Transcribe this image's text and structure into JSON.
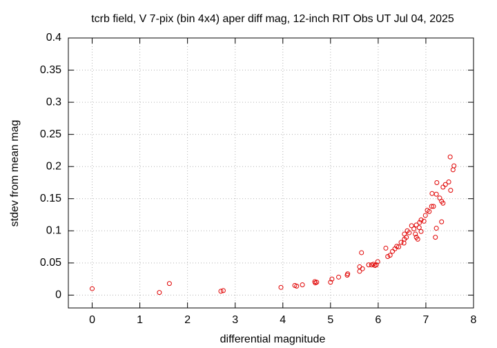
{
  "chart_data": {
    "type": "scatter",
    "title": "tcrb field, V 7-pix (bin 4x4) aper diff mag,  12-inch RIT Obs UT Jul 04, 2025",
    "x_label": "differential magnitude",
    "y_label": "stdev from mean mag",
    "color": "#e00000",
    "grid": true,
    "xlim": [
      -0.5,
      8
    ],
    "xticks": [
      0,
      1,
      2,
      3,
      4,
      5,
      6,
      7,
      8
    ],
    "ylim": [
      -0.02,
      0.4
    ],
    "yticks": [
      0,
      0.05,
      0.1,
      0.15,
      0.2,
      0.25,
      0.3,
      0.35,
      0.4
    ],
    "x": [
      0,
      1.41,
      1.62,
      2.7,
      2.75,
      3.96,
      4.25,
      4.29,
      4.41,
      4.67,
      4.71,
      4.68,
      5.0,
      5.03,
      5.17,
      5.35,
      5.36,
      5.61,
      5.61,
      5.67,
      5.65,
      5.8,
      5.86,
      5.9,
      5.96,
      5.99,
      5.93,
      6.16,
      6.2,
      6.25,
      6.3,
      6.35,
      6.39,
      6.43,
      6.48,
      6.54,
      6.55,
      6.55,
      6.59,
      6.61,
      6.65,
      6.7,
      6.75,
      6.78,
      6.8,
      6.83,
      6.8,
      6.86,
      6.87,
      6.9,
      6.9,
      6.96,
      6.99,
      7.03,
      7.07,
      7.12,
      7.16,
      7.13,
      7.22,
      7.2,
      7.22,
      7.23,
      7.29,
      7.33,
      7.36,
      7.33,
      7.36,
      7.41,
      7.48,
      7.52,
      7.51,
      7.57,
      7.59
    ],
    "values": [
      0.01,
      0.004,
      0.018,
      0.006,
      0.007,
      0.012,
      0.015,
      0.014,
      0.016,
      0.021,
      0.02,
      0.019,
      0.02,
      0.025,
      0.028,
      0.031,
      0.033,
      0.037,
      0.044,
      0.041,
      0.066,
      0.047,
      0.047,
      0.048,
      0.047,
      0.052,
      0.046,
      0.073,
      0.06,
      0.062,
      0.068,
      0.072,
      0.076,
      0.075,
      0.082,
      0.081,
      0.087,
      0.095,
      0.09,
      0.1,
      0.097,
      0.108,
      0.103,
      0.095,
      0.09,
      0.087,
      0.109,
      0.105,
      0.113,
      0.099,
      0.117,
      0.115,
      0.124,
      0.132,
      0.13,
      0.138,
      0.138,
      0.158,
      0.157,
      0.09,
      0.104,
      0.175,
      0.151,
      0.146,
      0.143,
      0.114,
      0.168,
      0.172,
      0.176,
      0.163,
      0.215,
      0.195,
      0.201
    ]
  }
}
